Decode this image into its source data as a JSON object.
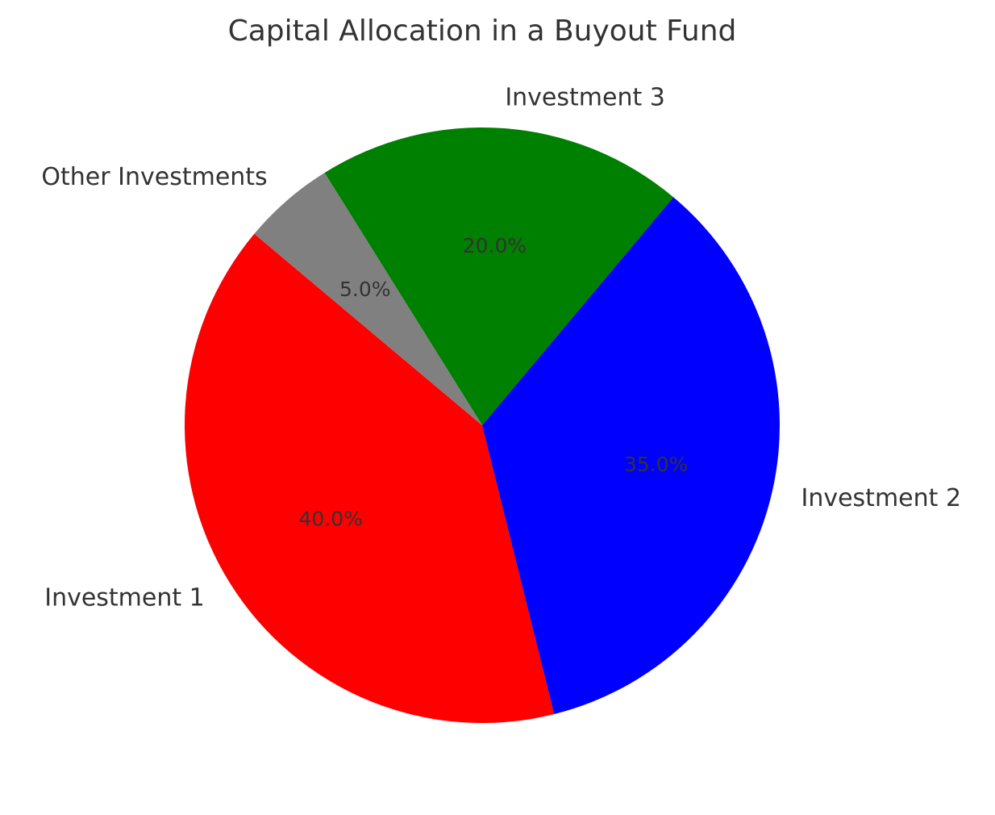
{
  "chart_data": {
    "type": "pie",
    "title": "Capital Allocation in a Buyout Fund",
    "start_angle_deg": 140,
    "counterclockwise": true,
    "slices": [
      {
        "label": "Investment 1",
        "value": 40.0,
        "pct_label": "40.0%",
        "color": "#ff0000"
      },
      {
        "label": "Investment 2",
        "value": 35.0,
        "pct_label": "35.0%",
        "color": "#0000ff"
      },
      {
        "label": "Investment 3",
        "value": 20.0,
        "pct_label": "20.0%",
        "color": "#008000"
      },
      {
        "label": "Other Investments",
        "value": 5.0,
        "pct_label": "5.0%",
        "color": "#808080"
      }
    ]
  }
}
